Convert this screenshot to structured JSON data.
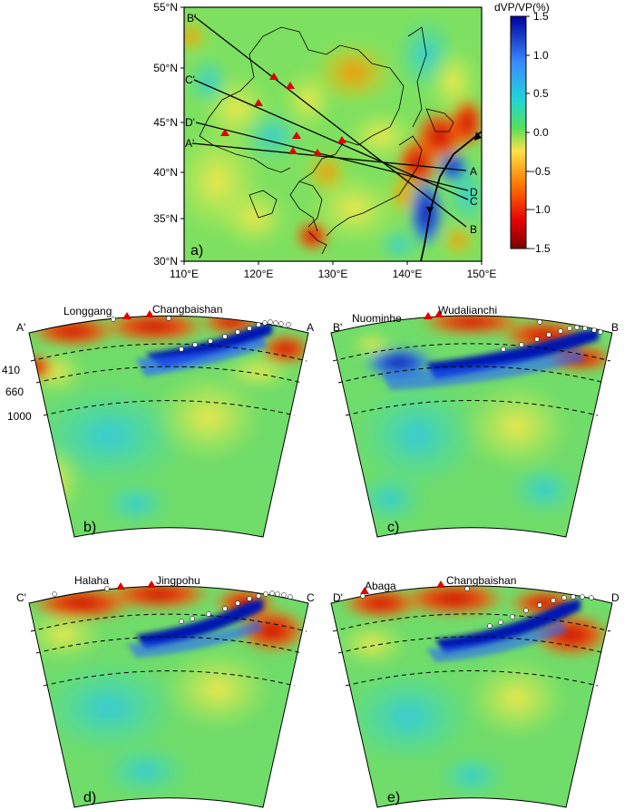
{
  "map": {
    "panel_label": "a)",
    "lat_ticks": [
      "55°N",
      "50°N",
      "45°N",
      "40°N",
      "35°N",
      "30°N"
    ],
    "lon_ticks": [
      "110°E",
      "120°E",
      "130°E",
      "140°E",
      "150°E"
    ],
    "profile_start_labels": [
      "B'",
      "C'",
      "D'",
      "A'"
    ],
    "profile_end_labels": [
      "A",
      "D",
      "C",
      "B"
    ]
  },
  "colorbar": {
    "title": "dVP/VP(%)",
    "ticks": [
      "1.5",
      "1.0",
      "0.5",
      "0.0",
      "−0.5",
      "−1.0",
      "−1.5"
    ],
    "range": [
      -1.5,
      1.5
    ],
    "colors": [
      "#7a0000",
      "#e60000",
      "#ff7a00",
      "#ffe14a",
      "#55e05a",
      "#1fd6d6",
      "#3a8cff",
      "#0000a0"
    ]
  },
  "sections": [
    {
      "panel_label": "b)",
      "left_label": "A'",
      "right_label": "A",
      "volcanoes": [
        "Longgang",
        "Changbaishan"
      ],
      "depth_labels": [
        "410",
        "660",
        "1000"
      ]
    },
    {
      "panel_label": "c)",
      "left_label": "B'",
      "right_label": "B",
      "volcanoes": [
        "Nuominhe",
        "Wudalianchi"
      ]
    },
    {
      "panel_label": "d)",
      "left_label": "C'",
      "right_label": "C",
      "volcanoes": [
        "Halaha",
        "Jingpohu"
      ]
    },
    {
      "panel_label": "e)",
      "left_label": "D'",
      "right_label": "D",
      "volcanoes": [
        "Abaga",
        "Changbaishan"
      ]
    }
  ]
}
